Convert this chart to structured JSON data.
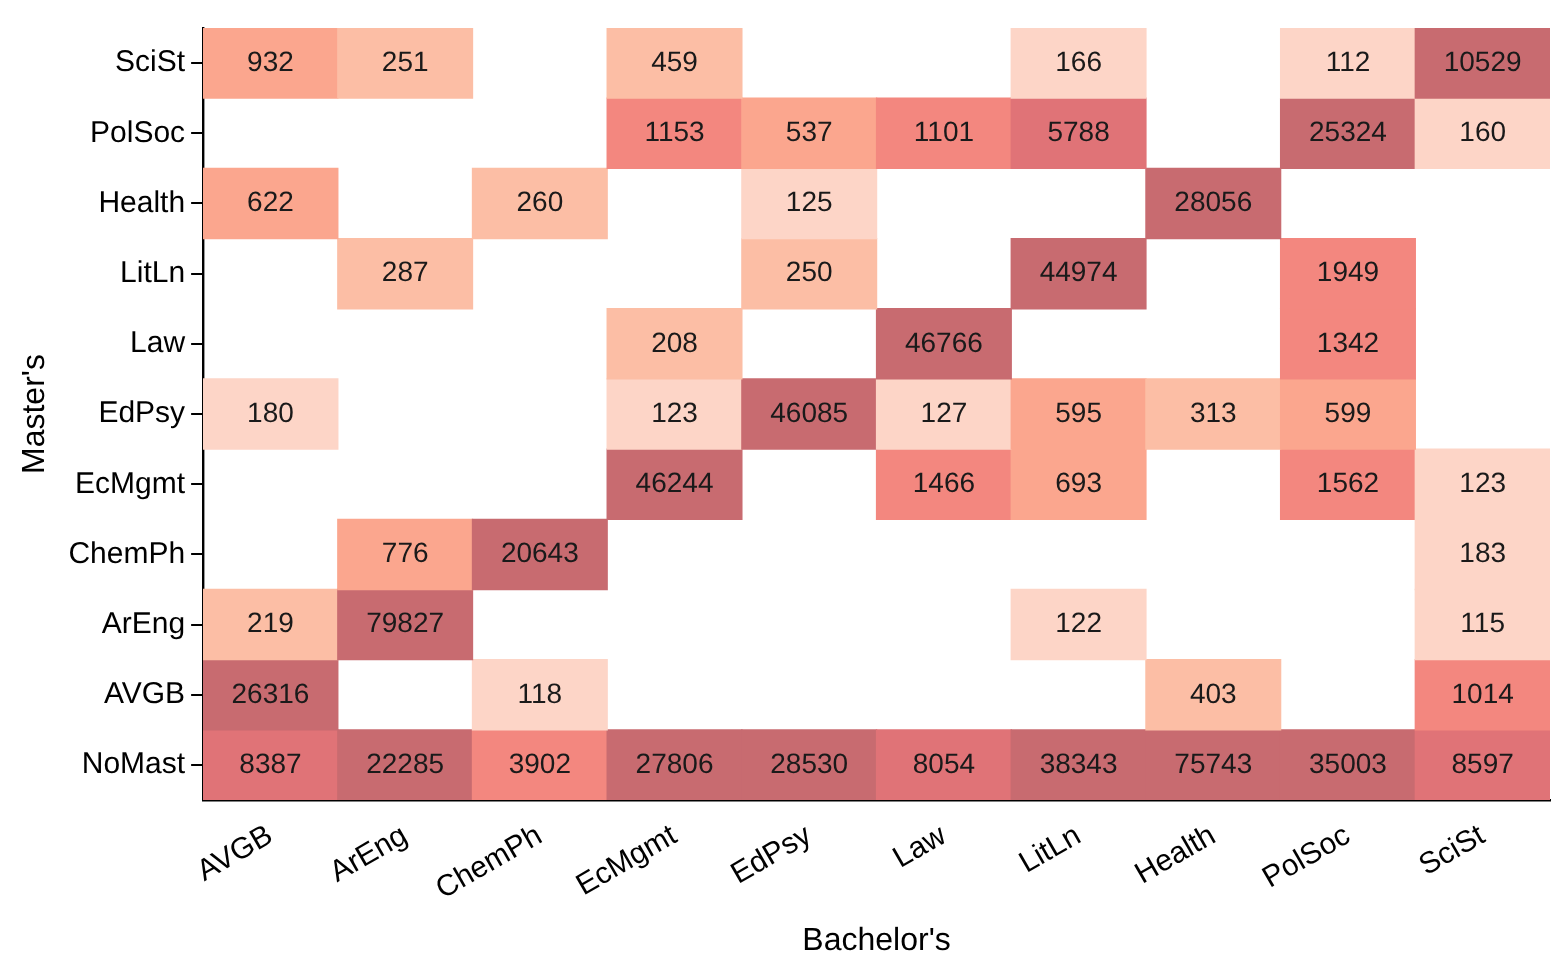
{
  "chart_data": {
    "type": "heatmap",
    "xlabel": "Bachelor's",
    "ylabel": "Master's",
    "categories": [
      "AVGB",
      "ArEng",
      "ChemPh",
      "EcMgmt",
      "EdPsy",
      "Law",
      "LitLn",
      "Health",
      "PolSoc",
      "SciSt"
    ],
    "y_categories": [
      "SciSt",
      "PolSoc",
      "Health",
      "LitLn",
      "Law",
      "EdPsy",
      "EcMgmt",
      "ChemPh",
      "ArEng",
      "AVGB",
      "NoMast"
    ],
    "cells": [
      [
        932,
        251,
        null,
        459,
        null,
        null,
        166,
        null,
        112,
        10529
      ],
      [
        null,
        null,
        null,
        1153,
        537,
        1101,
        5788,
        null,
        25324,
        160
      ],
      [
        622,
        null,
        260,
        null,
        125,
        null,
        null,
        28056,
        null,
        null
      ],
      [
        null,
        287,
        null,
        null,
        250,
        null,
        44974,
        null,
        1949,
        null
      ],
      [
        null,
        null,
        null,
        208,
        null,
        46766,
        null,
        null,
        1342,
        null
      ],
      [
        180,
        null,
        null,
        123,
        46085,
        127,
        595,
        313,
        599,
        null
      ],
      [
        null,
        null,
        null,
        46244,
        null,
        1466,
        693,
        null,
        1562,
        123
      ],
      [
        null,
        776,
        20643,
        null,
        null,
        null,
        null,
        null,
        null,
        183
      ],
      [
        219,
        79827,
        null,
        null,
        null,
        null,
        122,
        null,
        null,
        115
      ],
      [
        26316,
        null,
        118,
        null,
        null,
        null,
        null,
        403,
        null,
        1014
      ],
      [
        8387,
        22285,
        3902,
        27806,
        28530,
        8054,
        38343,
        75743,
        35003,
        8597
      ]
    ],
    "colors": [
      [
        "#fba68e",
        "#fcbea5",
        null,
        "#fcbea5",
        null,
        null,
        "#fdd5c7",
        null,
        "#fdd5c7",
        "#c86b70"
      ],
      [
        null,
        null,
        null,
        "#f3877f",
        "#fba68e",
        "#f3877f",
        "#e07377",
        null,
        "#c86b70",
        "#fdd5c7"
      ],
      [
        "#fba68e",
        null,
        "#fcbea5",
        null,
        "#fdd5c7",
        null,
        null,
        "#c86b70",
        null,
        null
      ],
      [
        null,
        "#fcbea5",
        null,
        null,
        "#fcbea5",
        null,
        "#c86b70",
        null,
        "#f3877f",
        null
      ],
      [
        null,
        null,
        null,
        "#fcbea5",
        null,
        "#c86b70",
        null,
        null,
        "#f3877f",
        null
      ],
      [
        "#fdd5c7",
        null,
        null,
        "#fdd5c7",
        "#c86b70",
        "#fdd5c7",
        "#fba68e",
        "#fcbea5",
        "#fba68e",
        null
      ],
      [
        null,
        null,
        null,
        "#c86b70",
        null,
        "#f3877f",
        "#fba68e",
        null,
        "#f3877f",
        "#fdd5c7"
      ],
      [
        null,
        "#fba68e",
        "#c86b70",
        null,
        null,
        null,
        null,
        null,
        null,
        "#fdd5c7"
      ],
      [
        "#fcbea5",
        "#c86b70",
        null,
        null,
        null,
        null,
        "#fdd5c7",
        null,
        null,
        "#fdd5c7"
      ],
      [
        "#c86b70",
        null,
        "#fdd5c7",
        null,
        null,
        null,
        null,
        "#fcbea5",
        null,
        "#f3877f"
      ],
      [
        "#e07377",
        "#c86b70",
        "#f3877f",
        "#c86b70",
        "#c86b70",
        "#e07377",
        "#c86b70",
        "#c86b70",
        "#c86b70",
        "#e07377"
      ]
    ],
    "data_labels": true,
    "grid": false,
    "legend": false
  }
}
